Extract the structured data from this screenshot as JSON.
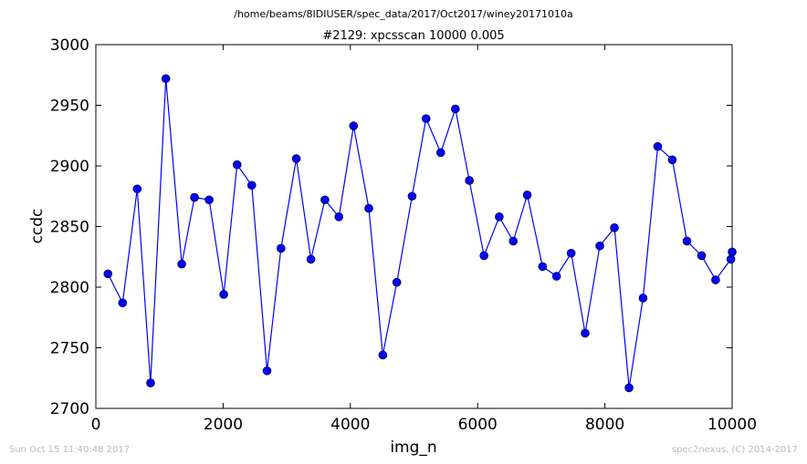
{
  "chart_data": {
    "type": "line",
    "suptitle": "/home/beams/8IDIUSER/spec_data/2017/Oct2017/winey20171010a",
    "title": "#2129: xpcsscan 10000 0.005",
    "xlabel": "img_n",
    "ylabel": "ccdc",
    "xlim": [
      0,
      10000
    ],
    "ylim": [
      2700,
      3000
    ],
    "xticks": [
      0,
      2000,
      4000,
      6000,
      8000,
      10000
    ],
    "yticks": [
      2700,
      2750,
      2800,
      2850,
      2900,
      2950,
      3000
    ],
    "grid": false,
    "color": "#0000ff",
    "series": [
      {
        "x": [
          190,
          420,
          650,
          860,
          1100,
          1350,
          1550,
          1780,
          2010,
          2220,
          2450,
          2690,
          2910,
          3150,
          3380,
          3600,
          3820,
          4050,
          4290,
          4510,
          4730,
          4970,
          5190,
          5420,
          5650,
          5870,
          6100,
          6340,
          6560,
          6780,
          7020,
          7240,
          7470,
          7690,
          7920,
          8150,
          8380,
          8600,
          8830,
          9060,
          9290,
          9520,
          9740,
          9980,
          10000
        ],
        "values": [
          2811,
          2787,
          2881,
          2721,
          2972,
          2819,
          2874,
          2872,
          2794,
          2901,
          2884,
          2731,
          2832,
          2906,
          2823,
          2872,
          2858,
          2933,
          2865,
          2744,
          2804,
          2875,
          2939,
          2911,
          2947,
          2888,
          2826,
          2858,
          2838,
          2876,
          2817,
          2809,
          2828,
          2762,
          2834,
          2849,
          2717,
          2791,
          2916,
          2905,
          2838,
          2826,
          2806,
          2823,
          2829
        ]
      }
    ]
  },
  "footer": {
    "timestamp": "Sun Oct 15 11:40:48 2017",
    "credit": "spec2nexus, (C) 2014-2017"
  }
}
